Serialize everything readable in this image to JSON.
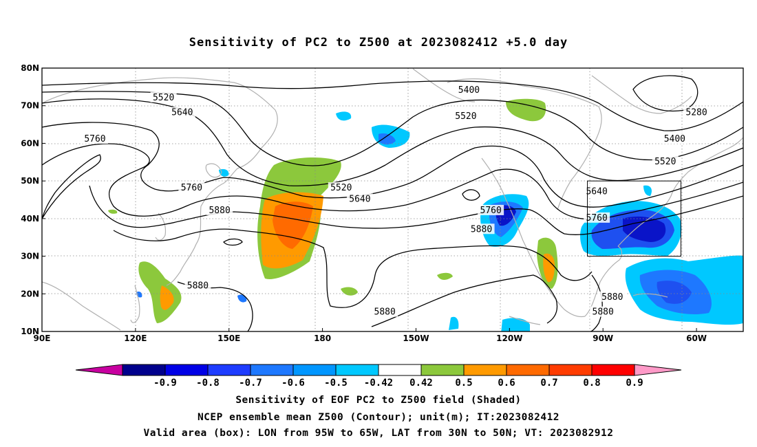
{
  "title": "Sensitivity of PC2 to Z500 at 2023082412 +5.0 day",
  "map": {
    "lon_range": [
      90,
      315
    ],
    "lat_range": [
      10,
      80
    ],
    "lat_ticks": [
      "80N",
      "70N",
      "60N",
      "50N",
      "40N",
      "30N",
      "20N",
      "10N"
    ],
    "lon_ticks": [
      "90E",
      "120E",
      "150E",
      "180",
      "150W",
      "120W",
      "90W",
      "60W"
    ],
    "box_label": "Valid area (box)",
    "box": {
      "lon_min": 265,
      "lon_max": 295,
      "lat_min": 30,
      "lat_max": 50
    },
    "contour_labels": [
      {
        "text": "5520",
        "lon": 129,
        "lat": 72
      },
      {
        "text": "5640",
        "lon": 135,
        "lat": 68
      },
      {
        "text": "5760",
        "lon": 107,
        "lat": 61
      },
      {
        "text": "5760",
        "lon": 138,
        "lat": 48
      },
      {
        "text": "5880",
        "lon": 147,
        "lat": 42
      },
      {
        "text": "5880",
        "lon": 140,
        "lat": 22
      },
      {
        "text": "5520",
        "lon": 186,
        "lat": 48
      },
      {
        "text": "5640",
        "lon": 192,
        "lat": 45
      },
      {
        "text": "5400",
        "lon": 227,
        "lat": 74
      },
      {
        "text": "5520",
        "lon": 226,
        "lat": 67
      },
      {
        "text": "5760",
        "lon": 234,
        "lat": 42
      },
      {
        "text": "5880",
        "lon": 231,
        "lat": 37
      },
      {
        "text": "5880",
        "lon": 200,
        "lat": 15
      },
      {
        "text": "5880",
        "lon": 273,
        "lat": 19
      },
      {
        "text": "5880",
        "lon": 270,
        "lat": 15
      },
      {
        "text": "5280",
        "lon": 300,
        "lat": 68
      },
      {
        "text": "5400",
        "lon": 293,
        "lat": 61
      },
      {
        "text": "5520",
        "lon": 290,
        "lat": 55
      },
      {
        "text": "5640",
        "lon": 268,
        "lat": 47
      },
      {
        "text": "5760",
        "lon": 268,
        "lat": 40
      }
    ],
    "shading_colors": {
      "neg_strong": "#0a14c8",
      "neg_mid": "#1e50f0",
      "neg_light": "#28a0f0",
      "neg_faint": "#00c8ff",
      "pos_faint": "#8cc83c",
      "pos_mid": "#ff9a00",
      "pos_strong": "#ff6a00",
      "land": "#b0b0b0"
    }
  },
  "colorbar": {
    "labels": [
      "-0.9",
      "-0.8",
      "-0.7",
      "-0.6",
      "-0.5",
      "-0.42",
      "0.42",
      "0.5",
      "0.6",
      "0.7",
      "0.8",
      "0.9"
    ],
    "colors": [
      "#c800a0",
      "#00008c",
      "#0000e6",
      "#1e3cff",
      "#1e78ff",
      "#0096ff",
      "#00c8ff",
      "#ffffff",
      "#8cc83c",
      "#ff9a00",
      "#ff6a00",
      "#ff3c00",
      "#ff0000",
      "#ff9ac8"
    ]
  },
  "captions": {
    "line1": "Sensitivity of EOF PC2 to Z500 field (Shaded)",
    "line2": "NCEP ensemble mean Z500 (Contour); unit(m); IT:2023082412",
    "line3": "Valid area (box): LON from 95W to 65W, LAT from 30N to 50N; VT: 2023082912"
  }
}
